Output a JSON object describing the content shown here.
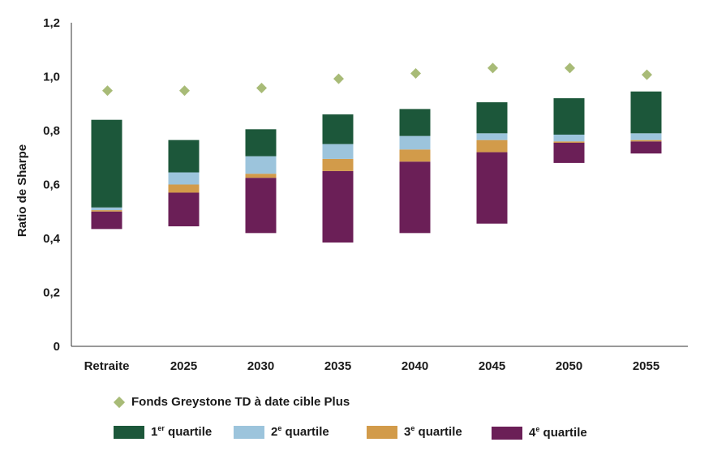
{
  "chart_data": {
    "type": "bar",
    "subtype": "floating-stacked-range",
    "ylabel": "Ratio de Sharpe",
    "ylim": [
      0,
      1.2
    ],
    "yticks": [
      "0",
      "0,2",
      "0,4",
      "0,6",
      "0,8",
      "1,0",
      "1,2"
    ],
    "yticks_values": [
      0,
      0.2,
      0.4,
      0.6,
      0.8,
      1.0,
      1.2
    ],
    "categories": [
      "Retraite",
      "2025",
      "2030",
      "2035",
      "2040",
      "2045",
      "2050",
      "2055"
    ],
    "boundaries": {
      "min": [
        0.435,
        0.445,
        0.42,
        0.385,
        0.42,
        0.455,
        0.68,
        0.715
      ],
      "q3": [
        0.5,
        0.57,
        0.625,
        0.65,
        0.685,
        0.72,
        0.755,
        0.76
      ],
      "median": [
        0.505,
        0.6,
        0.64,
        0.695,
        0.73,
        0.765,
        0.76,
        0.765
      ],
      "q1": [
        0.515,
        0.645,
        0.705,
        0.75,
        0.78,
        0.79,
        0.785,
        0.79
      ],
      "max": [
        0.84,
        0.765,
        0.805,
        0.86,
        0.88,
        0.905,
        0.92,
        0.945
      ]
    },
    "series": [
      {
        "key": "q4",
        "color": "#6b1f57",
        "from": "min",
        "to": "q3"
      },
      {
        "key": "q3",
        "color": "#d29b4a",
        "from": "q3",
        "to": "median"
      },
      {
        "key": "q2",
        "color": "#9cc4dc",
        "from": "median",
        "to": "q1"
      },
      {
        "key": "q1",
        "color": "#1c573a",
        "from": "q1",
        "to": "max"
      }
    ],
    "fund": {
      "name": "Fonds Greystone TD à date cible Plus",
      "color": "#a8bb77",
      "values": [
        0.948,
        0.948,
        0.958,
        0.992,
        1.012,
        1.032,
        1.032,
        1.007
      ]
    },
    "grid": false,
    "legend_position": "bottom"
  },
  "legend": {
    "fund_label": "Fonds Greystone TD à date cible Plus",
    "q1": {
      "num": "1",
      "sup": "er",
      "text": " quartile"
    },
    "q2": {
      "num": "2",
      "sup": "e",
      "text": " quartile"
    },
    "q3": {
      "num": "3",
      "sup": "e",
      "text": " quartile"
    },
    "q4": {
      "num": "4",
      "sup": "e",
      "text": " quartile"
    }
  }
}
